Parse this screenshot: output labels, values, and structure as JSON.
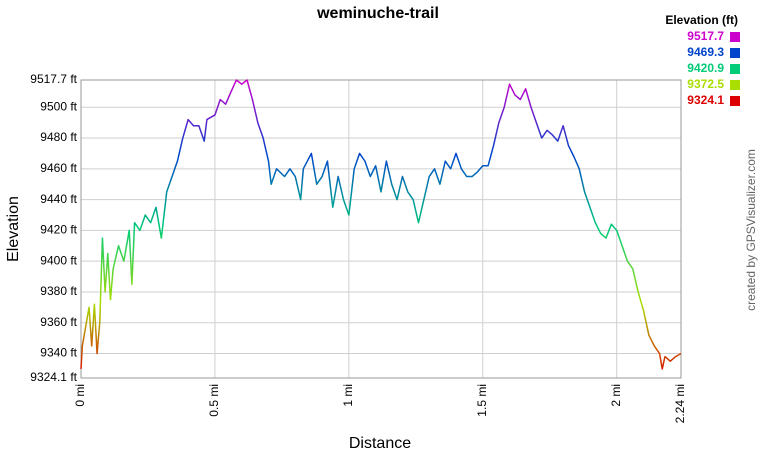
{
  "chart_data": {
    "type": "line",
    "title": "weminuche-trail",
    "x_label": "Distance",
    "y_label": "Elevation",
    "credit": "created by GPSVisualizer.com",
    "xlim": [
      0,
      2.24
    ],
    "ylim": [
      9324.1,
      9517.7
    ],
    "grid": true,
    "xticks": [
      {
        "value": 0,
        "label": "0 mi"
      },
      {
        "value": 0.5,
        "label": "0.5 mi"
      },
      {
        "value": 1,
        "label": "1 mi"
      },
      {
        "value": 1.5,
        "label": "1.5 mi"
      },
      {
        "value": 2,
        "label": "2 mi"
      },
      {
        "value": 2.24,
        "label": "2.24 mi"
      }
    ],
    "yticks": [
      {
        "value": 9324.1,
        "label": "9324.1 ft"
      },
      {
        "value": 9340,
        "label": "9340 ft"
      },
      {
        "value": 9360,
        "label": "9360 ft"
      },
      {
        "value": 9380,
        "label": "9380 ft"
      },
      {
        "value": 9400,
        "label": "9400 ft"
      },
      {
        "value": 9420,
        "label": "9420 ft"
      },
      {
        "value": 9440,
        "label": "9440 ft"
      },
      {
        "value": 9460,
        "label": "9460 ft"
      },
      {
        "value": 9480,
        "label": "9480 ft"
      },
      {
        "value": 9500,
        "label": "9500 ft"
      },
      {
        "value": 9517.7,
        "label": "9517.7 ft"
      }
    ],
    "legend": {
      "title": "Elevation (ft)",
      "position": "top-right",
      "entries": [
        {
          "value": 9517.7,
          "color": "#cc00cc"
        },
        {
          "value": 9469.3,
          "color": "#0044cc"
        },
        {
          "value": 9420.9,
          "color": "#00cc77"
        },
        {
          "value": 9372.5,
          "color": "#aadd00"
        },
        {
          "value": 9324.1,
          "color": "#dd0000"
        }
      ]
    },
    "x": [
      0,
      0.005,
      0.02,
      0.03,
      0.04,
      0.05,
      0.06,
      0.07,
      0.08,
      0.09,
      0.1,
      0.11,
      0.12,
      0.14,
      0.16,
      0.18,
      0.19,
      0.2,
      0.22,
      0.24,
      0.26,
      0.28,
      0.3,
      0.32,
      0.34,
      0.36,
      0.38,
      0.4,
      0.42,
      0.44,
      0.46,
      0.47,
      0.5,
      0.52,
      0.54,
      0.56,
      0.58,
      0.6,
      0.62,
      0.64,
      0.66,
      0.68,
      0.7,
      0.71,
      0.73,
      0.76,
      0.78,
      0.8,
      0.82,
      0.83,
      0.86,
      0.88,
      0.9,
      0.92,
      0.94,
      0.96,
      0.98,
      1.0,
      1.02,
      1.04,
      1.06,
      1.08,
      1.1,
      1.12,
      1.14,
      1.16,
      1.18,
      1.2,
      1.22,
      1.24,
      1.26,
      1.28,
      1.3,
      1.32,
      1.34,
      1.36,
      1.38,
      1.4,
      1.42,
      1.44,
      1.46,
      1.48,
      1.5,
      1.52,
      1.54,
      1.56,
      1.58,
      1.6,
      1.62,
      1.64,
      1.66,
      1.68,
      1.7,
      1.72,
      1.74,
      1.76,
      1.78,
      1.8,
      1.82,
      1.84,
      1.86,
      1.88,
      1.9,
      1.92,
      1.94,
      1.96,
      1.98,
      2.0,
      2.02,
      2.04,
      2.06,
      2.08,
      2.1,
      2.12,
      2.14,
      2.16,
      2.17,
      2.18,
      2.2,
      2.22,
      2.24
    ],
    "values": [
      9330,
      9345,
      9360,
      9370,
      9345,
      9372,
      9340,
      9360,
      9415,
      9380,
      9405,
      9375,
      9395,
      9410,
      9400,
      9420,
      9385,
      9425,
      9420,
      9430,
      9425,
      9435,
      9415,
      9445,
      9455,
      9465,
      9480,
      9492,
      9488,
      9488,
      9478,
      9492,
      9495,
      9505,
      9502,
      9510,
      9517.7,
      9515,
      9517.7,
      9505,
      9490,
      9480,
      9465,
      9450,
      9460,
      9455,
      9460,
      9455,
      9440,
      9460,
      9470,
      9450,
      9455,
      9465,
      9435,
      9455,
      9440,
      9430,
      9460,
      9470,
      9465,
      9455,
      9462,
      9445,
      9465,
      9450,
      9440,
      9455,
      9445,
      9440,
      9425,
      9440,
      9455,
      9460,
      9450,
      9465,
      9460,
      9470,
      9460,
      9455,
      9455,
      9458,
      9462,
      9462,
      9475,
      9490,
      9500,
      9515,
      9508,
      9505,
      9512,
      9500,
      9490,
      9480,
      9485,
      9482,
      9478,
      9488,
      9475,
      9468,
      9460,
      9445,
      9435,
      9425,
      9418,
      9415,
      9424,
      9420,
      9410,
      9400,
      9395,
      9380,
      9368,
      9352,
      9345,
      9340,
      9330,
      9338,
      9335,
      9338,
      9340
    ]
  }
}
